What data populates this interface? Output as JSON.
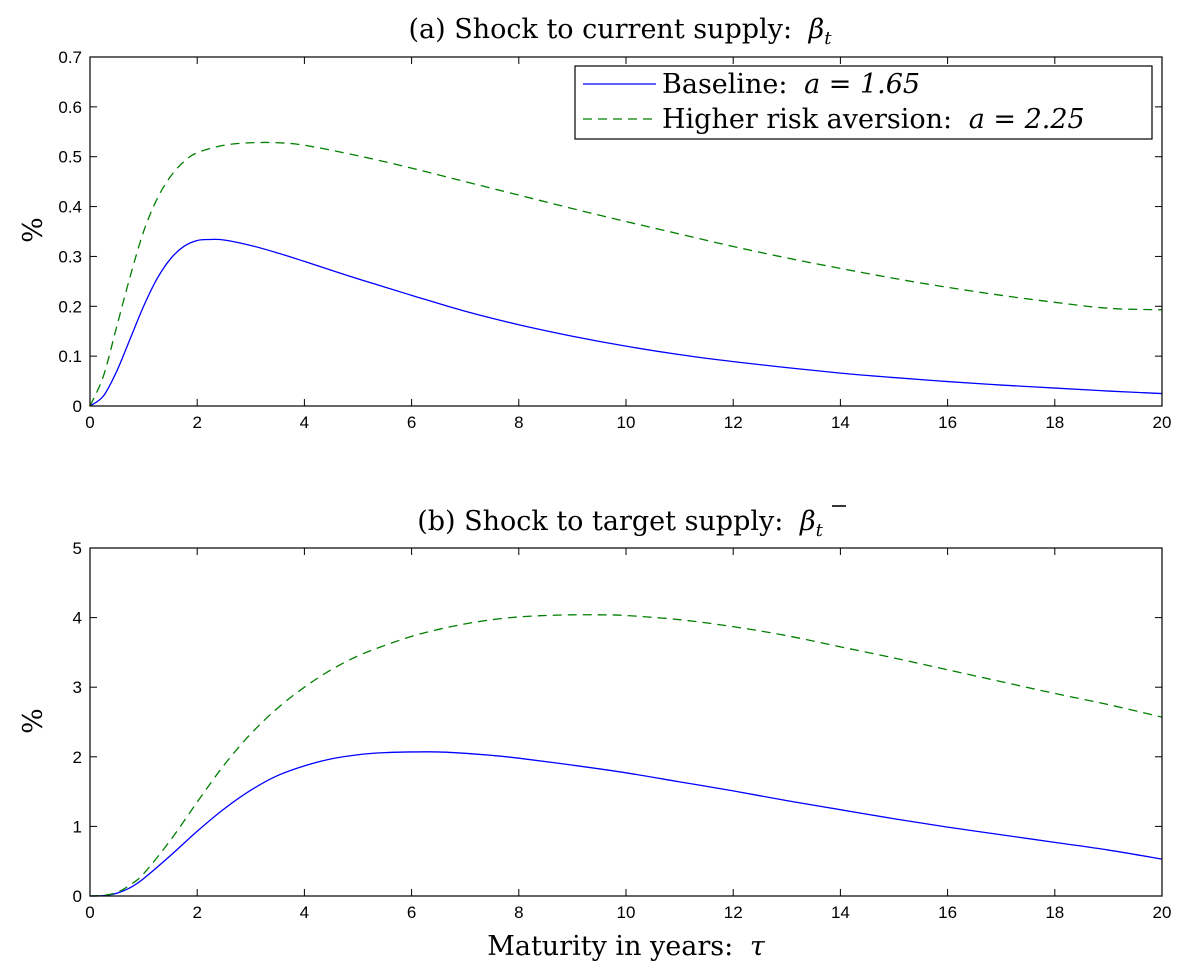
{
  "chart_data": [
    {
      "type": "line",
      "title_prefix": "(a) Shock to current supply:",
      "title_symbol": "β",
      "title_sub": "t",
      "title_bar": false,
      "ylabel": "%",
      "xlabel": "",
      "xlim": [
        0,
        20
      ],
      "ylim": [
        0,
        0.7
      ],
      "xticks": [
        0,
        2,
        4,
        6,
        8,
        10,
        12,
        14,
        16,
        18,
        20
      ],
      "yticks": [
        0,
        0.1,
        0.2,
        0.3,
        0.4,
        0.5,
        0.6,
        0.7
      ],
      "ytick_labels": [
        "0",
        "0.1",
        "0.2",
        "0.3",
        "0.4",
        "0.5",
        "0.6",
        "0.7"
      ],
      "grid": false,
      "legend": "top-right",
      "series": [
        {
          "name": "Baseline: a = 1.65",
          "legend_text": "Baseline:",
          "legend_math": "a = 1.65",
          "color": "#0000ff",
          "dash": "solid",
          "x": [
            0,
            0.25,
            0.5,
            0.75,
            1,
            1.25,
            1.5,
            1.75,
            2,
            2.25,
            2.5,
            3,
            3.5,
            4,
            5,
            6,
            7,
            8,
            9,
            10,
            11,
            12,
            13,
            14,
            15,
            16,
            17,
            18,
            19,
            20
          ],
          "y": [
            0,
            0.02,
            0.07,
            0.135,
            0.2,
            0.255,
            0.295,
            0.32,
            0.332,
            0.334,
            0.333,
            0.322,
            0.307,
            0.29,
            0.255,
            0.222,
            0.19,
            0.163,
            0.14,
            0.12,
            0.103,
            0.089,
            0.077,
            0.066,
            0.057,
            0.049,
            0.042,
            0.036,
            0.03,
            0.025
          ]
        },
        {
          "name": "Higher risk aversion: a = 2.25",
          "legend_text": "Higher risk aversion:",
          "legend_math": "a = 2.25",
          "color": "#007f00",
          "dash": "dashed",
          "x": [
            0,
            0.25,
            0.5,
            0.75,
            1,
            1.25,
            1.5,
            1.75,
            2,
            2.5,
            3,
            3.5,
            4,
            5,
            6,
            7,
            8,
            9,
            10,
            11,
            12,
            13,
            14,
            15,
            16,
            17,
            18,
            19,
            20
          ],
          "y": [
            0,
            0.06,
            0.16,
            0.26,
            0.35,
            0.415,
            0.46,
            0.49,
            0.508,
            0.523,
            0.528,
            0.528,
            0.523,
            0.502,
            0.477,
            0.45,
            0.423,
            0.396,
            0.37,
            0.345,
            0.32,
            0.297,
            0.276,
            0.256,
            0.238,
            0.222,
            0.208,
            0.196,
            0.193
          ]
        }
      ]
    },
    {
      "type": "line",
      "title_prefix": "(b) Shock to target supply:",
      "title_symbol": "β",
      "title_sub": "t",
      "title_bar": true,
      "ylabel": "%",
      "xlabel_prefix": "Maturity in years:",
      "xlabel_symbol": "τ",
      "xlim": [
        0,
        20
      ],
      "ylim": [
        0,
        5
      ],
      "xticks": [
        0,
        2,
        4,
        6,
        8,
        10,
        12,
        14,
        16,
        18,
        20
      ],
      "yticks": [
        0,
        1,
        2,
        3,
        4,
        5
      ],
      "ytick_labels": [
        "0",
        "1",
        "2",
        "3",
        "4",
        "5"
      ],
      "grid": false,
      "series": [
        {
          "name": "Baseline: a = 1.65",
          "color": "#0000ff",
          "dash": "solid",
          "x": [
            0,
            0.25,
            0.5,
            0.75,
            1,
            1.5,
            2,
            2.5,
            3,
            3.5,
            4,
            4.5,
            5,
            5.5,
            6,
            6.5,
            7,
            7.5,
            8,
            9,
            10,
            11,
            12,
            13,
            14,
            15,
            16,
            17,
            18,
            19,
            20
          ],
          "y": [
            0,
            0.005,
            0.04,
            0.12,
            0.25,
            0.58,
            0.93,
            1.25,
            1.52,
            1.73,
            1.87,
            1.97,
            2.03,
            2.06,
            2.07,
            2.07,
            2.05,
            2.02,
            1.98,
            1.88,
            1.77,
            1.64,
            1.51,
            1.37,
            1.24,
            1.11,
            0.99,
            0.88,
            0.77,
            0.66,
            0.53
          ]
        },
        {
          "name": "Higher risk aversion: a = 2.25",
          "color": "#007f00",
          "dash": "dashed",
          "x": [
            0,
            0.25,
            0.5,
            0.75,
            1,
            1.5,
            2,
            2.5,
            3,
            3.5,
            4,
            4.5,
            5,
            5.5,
            6,
            6.5,
            7,
            7.5,
            8,
            8.5,
            9,
            9.5,
            10,
            11,
            12,
            13,
            14,
            15,
            16,
            17,
            18,
            19,
            20
          ],
          "y": [
            0,
            0.01,
            0.05,
            0.16,
            0.32,
            0.8,
            1.35,
            1.88,
            2.33,
            2.7,
            3.0,
            3.25,
            3.45,
            3.6,
            3.73,
            3.83,
            3.91,
            3.97,
            4.01,
            4.03,
            4.04,
            4.04,
            4.03,
            3.97,
            3.87,
            3.74,
            3.58,
            3.42,
            3.25,
            3.08,
            2.91,
            2.75,
            2.57
          ]
        }
      ]
    }
  ]
}
